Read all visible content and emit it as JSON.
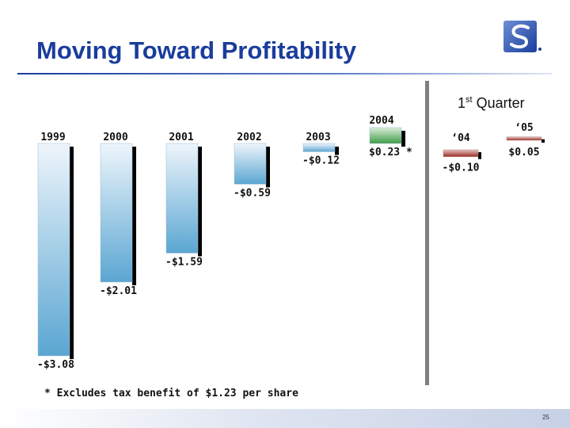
{
  "slide": {
    "title": "Moving Toward Profitability",
    "page_number": "25",
    "footnote": "* Excludes tax benefit of $1.23 per share",
    "quarter_label": "1st Quarter",
    "quarter_label_main": "1",
    "quarter_label_sup": "st",
    "quarter_label_rest": " Quarter",
    "logo_icon": "company-s-logo-icon"
  },
  "chart_data": [
    {
      "type": "bar",
      "title": "",
      "categories": [
        "1999",
        "2000",
        "2001",
        "2002",
        "2003",
        "2004"
      ],
      "values": [
        -3.08,
        -2.01,
        -1.59,
        -0.59,
        -0.12,
        0.23
      ],
      "value_labels": [
        "-$3.08",
        "-$2.01",
        "-$1.59",
        "-$0.59",
        "-$0.12",
        "$0.23 *"
      ],
      "colors": {
        "negative": "#5aa6d2",
        "positive": "#3f9b47"
      },
      "grid": false,
      "legend": "none"
    },
    {
      "type": "bar",
      "title": "1st Quarter",
      "categories": [
        "‘04",
        "‘05"
      ],
      "values": [
        -0.1,
        0.05
      ],
      "value_labels": [
        "-$0.10",
        "$0.05"
      ],
      "colors": {
        "negative": "#9a2a24",
        "positive": "#9a2a24"
      },
      "grid": false,
      "legend": "none"
    }
  ]
}
